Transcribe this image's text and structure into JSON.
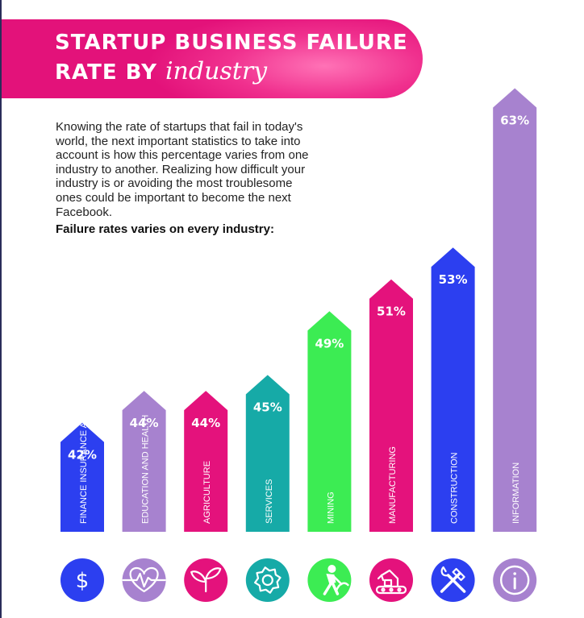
{
  "header": {
    "title_line1": "STARTUP BUSINESS FAILURE",
    "title_line2_prefix": "RATE BY ",
    "title_line2_accent": "industry"
  },
  "intro": {
    "text": "Knowing the rate of startups that fail in today's world, the next important statistics to take into account is how this percentage varies from one industry to another. Realizing how difficult your industry is or avoiding the most troublesome ones could be important to become the next Facebook.",
    "subheading": "Failure rates varies on every industry:"
  },
  "chart_data": {
    "type": "bar",
    "categories": [
      "FINANCE INSURANCE AND REAL ESTATE",
      "EDUCATION AND HEALTH",
      "AGRICULTURE",
      "SERVICES",
      "MINING",
      "MANUFACTURING",
      "CONSTRUCTION",
      "INFORMATION"
    ],
    "values": [
      42,
      44,
      44,
      45,
      49,
      51,
      53,
      63
    ],
    "value_labels": [
      "42%",
      "44%",
      "44%",
      "45%",
      "49%",
      "51%",
      "53%",
      "63%"
    ],
    "unit": "%",
    "colors": [
      "#2c3ff0",
      "#a782cf",
      "#e4127c",
      "#16aaa7",
      "#3cec53",
      "#e4127c",
      "#2c3ff0",
      "#a782cf"
    ],
    "icons": [
      "dollar-icon",
      "heart-pulse-icon",
      "sprout-icon",
      "gear-icon",
      "miner-icon",
      "robot-arm-icon",
      "tools-icon",
      "info-icon"
    ],
    "grid": false,
    "legend": "none"
  }
}
